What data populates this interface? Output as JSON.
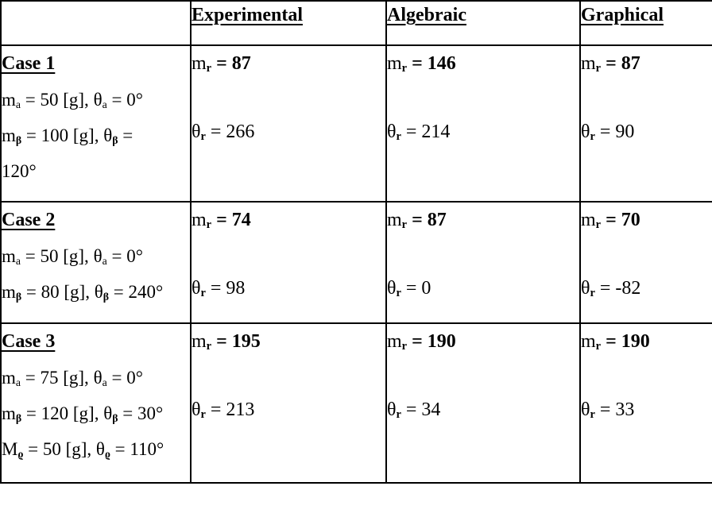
{
  "page": {
    "background": "#ffffff",
    "text_color": "#000000",
    "border_color": "#000000"
  },
  "table": {
    "headers": [
      "",
      "Experimental",
      "Algebraic",
      "Graphical"
    ],
    "column_keys": [
      "experimental",
      "algebraic",
      "graphical"
    ],
    "equals": " = ",
    "result_mass_prefix": [
      {
        "t": "m"
      },
      {
        "t": "r",
        "s": 1,
        "b": 1
      }
    ],
    "result_angle_prefix": [
      {
        "t": "θ"
      },
      {
        "t": "r",
        "s": 1,
        "b": 1
      }
    ],
    "cases": [
      {
        "label": "Case 1",
        "given_lines": [
          [
            {
              "t": "m"
            },
            {
              "t": "a",
              "s": 1
            },
            {
              "t": " = 50 [g], "
            },
            {
              "t": "θ"
            },
            {
              "t": "a",
              "s": 1
            },
            {
              "t": " = 0°"
            }
          ],
          [
            {
              "t": "m"
            },
            {
              "t": "β",
              "s": 1,
              "b": 1
            },
            {
              "t": " = 100 [g], "
            },
            {
              "t": "θ"
            },
            {
              "t": "β",
              "s": 1,
              "b": 1
            },
            {
              "t": " ="
            }
          ],
          [
            {
              "t": "120°"
            }
          ]
        ],
        "results": [
          {
            "m": "87",
            "theta": "266"
          },
          {
            "m": "146",
            "theta": "214"
          },
          {
            "m": "87",
            "theta": "90"
          }
        ]
      },
      {
        "label": "Case 2",
        "given_lines": [
          [
            {
              "t": "m"
            },
            {
              "t": "a",
              "s": 1
            },
            {
              "t": " = 50 [g], "
            },
            {
              "t": "θ"
            },
            {
              "t": "a",
              "s": 1
            },
            {
              "t": " = 0°"
            }
          ],
          [
            {
              "t": "m"
            },
            {
              "t": "β",
              "s": 1,
              "b": 1
            },
            {
              "t": " = 80 [g], "
            },
            {
              "t": "θ"
            },
            {
              "t": "β",
              "s": 1,
              "b": 1
            },
            {
              "t": " = 240°"
            }
          ]
        ],
        "results": [
          {
            "m": "74",
            "theta": "98"
          },
          {
            "m": "87",
            "theta": "0"
          },
          {
            "m": "70",
            "theta": "-82"
          }
        ]
      },
      {
        "label": "Case 3",
        "given_lines": [
          [
            {
              "t": "m"
            },
            {
              "t": "a",
              "s": 1
            },
            {
              "t": " = 75 [g], "
            },
            {
              "t": "θ"
            },
            {
              "t": "a",
              "s": 1
            },
            {
              "t": " = 0°"
            }
          ],
          [
            {
              "t": "m"
            },
            {
              "t": "β",
              "s": 1,
              "b": 1
            },
            {
              "t": " = 120 [g], "
            },
            {
              "t": "θ"
            },
            {
              "t": "β",
              "s": 1,
              "b": 1
            },
            {
              "t": " = 30°"
            }
          ],
          [
            {
              "t": "M"
            },
            {
              "t": "ϱ",
              "s": 1,
              "b": 1
            },
            {
              "t": " = 50 [g], "
            },
            {
              "t": "θ"
            },
            {
              "t": "ϱ",
              "s": 1,
              "b": 1
            },
            {
              "t": " = 110°"
            }
          ]
        ],
        "results": [
          {
            "m": "195",
            "theta": "213"
          },
          {
            "m": "190",
            "theta": "34"
          },
          {
            "m": "190",
            "theta": "33"
          }
        ]
      }
    ]
  }
}
